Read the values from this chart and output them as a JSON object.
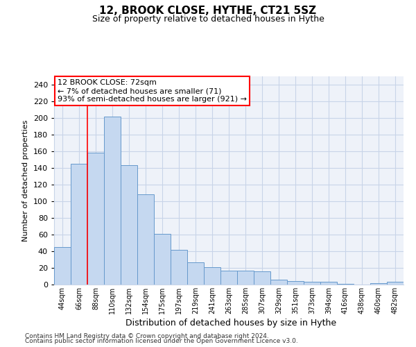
{
  "title": "12, BROOK CLOSE, HYTHE, CT21 5SZ",
  "subtitle": "Size of property relative to detached houses in Hythe",
  "xlabel": "Distribution of detached houses by size in Hythe",
  "ylabel": "Number of detached properties",
  "bar_color": "#c5d8f0",
  "bar_edge_color": "#6699cc",
  "categories": [
    "44sqm",
    "66sqm",
    "88sqm",
    "110sqm",
    "132sqm",
    "154sqm",
    "175sqm",
    "197sqm",
    "219sqm",
    "241sqm",
    "263sqm",
    "285sqm",
    "307sqm",
    "329sqm",
    "351sqm",
    "373sqm",
    "394sqm",
    "416sqm",
    "438sqm",
    "460sqm",
    "482sqm"
  ],
  "values": [
    45,
    145,
    158,
    202,
    143,
    108,
    61,
    42,
    27,
    21,
    17,
    17,
    16,
    6,
    4,
    3,
    3,
    1,
    0,
    2,
    3
  ],
  "ylim": [
    0,
    250
  ],
  "yticks": [
    0,
    20,
    40,
    60,
    80,
    100,
    120,
    140,
    160,
    180,
    200,
    220,
    240
  ],
  "red_line_x": 1.5,
  "annotation_text": "12 BROOK CLOSE: 72sqm\n← 7% of detached houses are smaller (71)\n93% of semi-detached houses are larger (921) →",
  "footer1": "Contains HM Land Registry data © Crown copyright and database right 2024.",
  "footer2": "Contains public sector information licensed under the Open Government Licence v3.0.",
  "background_color": "#eef2f9",
  "grid_color": "#c8d4e8"
}
